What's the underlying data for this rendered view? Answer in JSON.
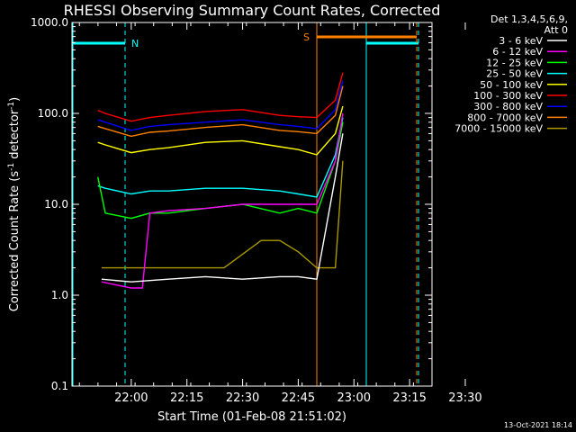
{
  "chart_data": {
    "type": "line",
    "title": "RHESSI Observing Summary Count Rates, Corrected",
    "xlabel": "Start Time (01-Feb-08 21:51:02)",
    "ylabel_main": "Corrected Count Rate (s",
    "ylabel_sup1": "-1",
    "ylabel_mid": " detector",
    "ylabel_sup2": "-1",
    "ylabel_end": ")",
    "y_scale": "log",
    "ylim": [
      0.1,
      1000
    ],
    "xlim_minutes_after_start": [
      -7,
      90
    ],
    "y_ticks": [
      {
        "value": 0.1,
        "label": "0.1"
      },
      {
        "value": 1,
        "label": "1.0"
      },
      {
        "value": 10,
        "label": "10.0"
      },
      {
        "value": 100,
        "label": "100.0"
      },
      {
        "value": 1000,
        "label": "1000.0"
      }
    ],
    "x_ticks": [
      {
        "value": "22:00",
        "label": "22:00"
      },
      {
        "value": "22:15",
        "label": "22:15"
      },
      {
        "value": "22:30",
        "label": "22:30"
      },
      {
        "value": "22:45",
        "label": "22:45"
      },
      {
        "value": "23:00",
        "label": "23:00"
      },
      {
        "value": "23:15",
        "label": "23:15"
      },
      {
        "value": "23:30",
        "label": "23:30"
      }
    ],
    "legend_header": [
      "Det 1,3,4,5,6,9,",
      "Att 0"
    ],
    "legend_position": "right",
    "series": [
      {
        "name": "3 - 6 keV",
        "color": "#ffffff",
        "x": [
          "21:52",
          "22:00",
          "22:10",
          "22:20",
          "22:30",
          "22:40",
          "22:45",
          "22:50",
          "22:55",
          "22:57"
        ],
        "y": [
          1.5,
          1.4,
          1.5,
          1.6,
          1.5,
          1.6,
          1.6,
          1.5,
          20,
          60
        ]
      },
      {
        "name": "6 - 12 keV",
        "color": "#ff00ff",
        "x": [
          "21:52",
          "22:00",
          "22:03",
          "22:05",
          "22:10",
          "22:20",
          "22:30",
          "22:40",
          "22:45",
          "22:50",
          "22:55",
          "22:57"
        ],
        "y": [
          1.4,
          1.2,
          1.2,
          8,
          8.5,
          9,
          10,
          10,
          10,
          10,
          30,
          100
        ]
      },
      {
        "name": "12 - 25 keV",
        "color": "#00ff00",
        "x": [
          "21:51",
          "21:53",
          "22:00",
          "22:05",
          "22:10",
          "22:20",
          "22:30",
          "22:40",
          "22:45",
          "22:50",
          "22:55",
          "22:57"
        ],
        "y": [
          20,
          8,
          7,
          8,
          8,
          9,
          10,
          8,
          9,
          8,
          30,
          80
        ]
      },
      {
        "name": "25 - 50 keV",
        "color": "#00ffff",
        "x": [
          "21:51",
          "21:53",
          "22:00",
          "22:05",
          "22:10",
          "22:20",
          "22:30",
          "22:40",
          "22:45",
          "22:50",
          "22:55",
          "22:57"
        ],
        "y": [
          16,
          15,
          13,
          14,
          14,
          15,
          15,
          14,
          13,
          12,
          35,
          90
        ]
      },
      {
        "name": "50 - 100 keV",
        "color": "#ffff00",
        "x": [
          "21:51",
          "21:53",
          "22:00",
          "22:05",
          "22:10",
          "22:20",
          "22:30",
          "22:40",
          "22:45",
          "22:50",
          "22:55",
          "22:57"
        ],
        "y": [
          48,
          45,
          37,
          40,
          42,
          48,
          50,
          43,
          40,
          35,
          60,
          120
        ]
      },
      {
        "name": "100 - 300 keV",
        "color": "#ff0000",
        "x": [
          "21:51",
          "21:53",
          "22:00",
          "22:05",
          "22:10",
          "22:20",
          "22:30",
          "22:40",
          "22:45",
          "22:50",
          "22:55",
          "22:57"
        ],
        "y": [
          108,
          100,
          82,
          90,
          95,
          105,
          110,
          95,
          92,
          90,
          140,
          280
        ]
      },
      {
        "name": "300 - 800 keV",
        "color": "#0000ff",
        "x": [
          "21:51",
          "21:53",
          "22:00",
          "22:05",
          "22:10",
          "22:20",
          "22:30",
          "22:40",
          "22:45",
          "22:50",
          "22:55",
          "22:57"
        ],
        "y": [
          85,
          80,
          65,
          72,
          75,
          80,
          85,
          75,
          72,
          68,
          110,
          230
        ]
      },
      {
        "name": "800 - 7000 keV",
        "color": "#ff8000",
        "x": [
          "21:51",
          "21:53",
          "22:00",
          "22:05",
          "22:10",
          "22:20",
          "22:30",
          "22:40",
          "22:45",
          "22:50",
          "22:55",
          "22:57"
        ],
        "y": [
          72,
          68,
          56,
          62,
          64,
          70,
          75,
          65,
          63,
          60,
          95,
          200
        ]
      },
      {
        "name": "7000 - 15000 keV",
        "color": "#aa9900",
        "x": [
          "21:52",
          "22:00",
          "22:10",
          "22:20",
          "22:25",
          "22:35",
          "22:40",
          "22:45",
          "22:50",
          "22:55",
          "22:57"
        ],
        "y": [
          2,
          2,
          2,
          2,
          2,
          4,
          4,
          3,
          2,
          2,
          30
        ]
      }
    ],
    "annotations": [
      {
        "label": "N",
        "color": "#00ffff"
      },
      {
        "label": "S",
        "color": "#ff8000"
      }
    ],
    "footer_date": "13-Oct-2021 18:14"
  }
}
